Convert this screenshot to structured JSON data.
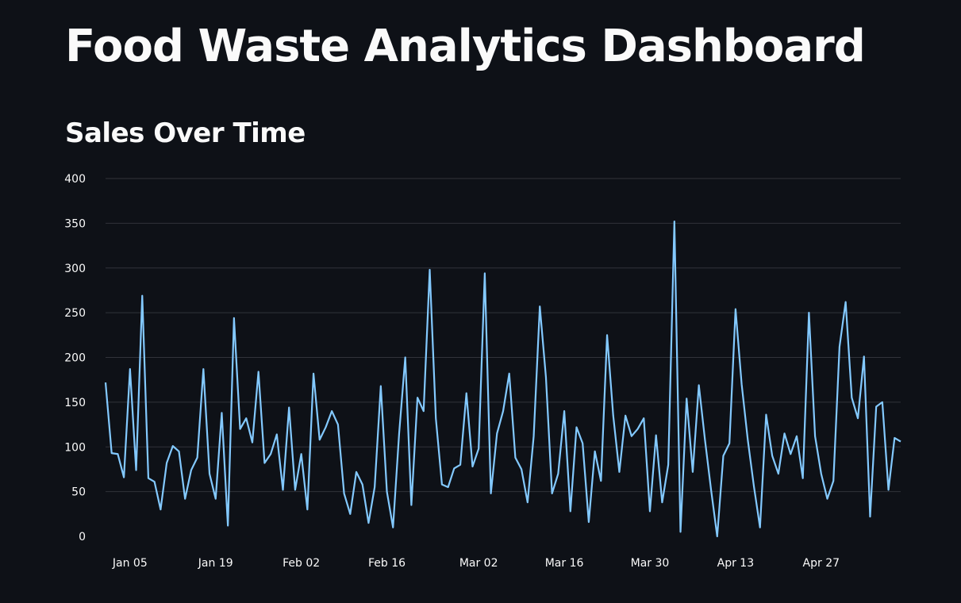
{
  "header": {
    "title": "Food Waste Analytics Dashboard"
  },
  "section": {
    "title": "Sales Over Time"
  },
  "colors": {
    "background": "#0e1117",
    "line": "#83c9ff",
    "grid": "#31333a",
    "text": "#fafafa"
  },
  "chart_data": {
    "type": "line",
    "title": "Sales Over Time",
    "xlabel": "",
    "ylabel": "",
    "ylim": [
      0,
      400
    ],
    "yticks": [
      0,
      50,
      100,
      150,
      200,
      250,
      300,
      350,
      400
    ],
    "xlim": [
      "2024-01-01",
      "2024-05-10"
    ],
    "xticks": [
      {
        "date": "2024-01-05",
        "label": "Jan 05"
      },
      {
        "date": "2024-01-19",
        "label": "Jan 19"
      },
      {
        "date": "2024-02-02",
        "label": "Feb 02"
      },
      {
        "date": "2024-02-16",
        "label": "Feb 16"
      },
      {
        "date": "2024-03-02",
        "label": "Mar 02"
      },
      {
        "date": "2024-03-16",
        "label": "Mar 16"
      },
      {
        "date": "2024-03-30",
        "label": "Mar 30"
      },
      {
        "date": "2024-04-13",
        "label": "Apr 13"
      },
      {
        "date": "2024-04-27",
        "label": "Apr 27"
      }
    ],
    "grid": true,
    "legend": "none",
    "series": [
      {
        "x": [
          "2024-01-01",
          "2024-01-02",
          "2024-01-03",
          "2024-01-04",
          "2024-01-05",
          "2024-01-06",
          "2024-01-07",
          "2024-01-08",
          "2024-01-09",
          "2024-01-10",
          "2024-01-11",
          "2024-01-12",
          "2024-01-13",
          "2024-01-14",
          "2024-01-15",
          "2024-01-16",
          "2024-01-17",
          "2024-01-18",
          "2024-01-19",
          "2024-01-20",
          "2024-01-21",
          "2024-01-22",
          "2024-01-23",
          "2024-01-24",
          "2024-01-25",
          "2024-01-26",
          "2024-01-27",
          "2024-01-28",
          "2024-01-29",
          "2024-01-30",
          "2024-01-31",
          "2024-02-01",
          "2024-02-02",
          "2024-02-03",
          "2024-02-04",
          "2024-02-05",
          "2024-02-06",
          "2024-02-07",
          "2024-02-08",
          "2024-02-09",
          "2024-02-10",
          "2024-02-11",
          "2024-02-12",
          "2024-02-13",
          "2024-02-14",
          "2024-02-15",
          "2024-02-16",
          "2024-02-17",
          "2024-02-18",
          "2024-02-19",
          "2024-02-20",
          "2024-02-21",
          "2024-02-22",
          "2024-02-23",
          "2024-02-24",
          "2024-02-25",
          "2024-02-26",
          "2024-02-27",
          "2024-02-28",
          "2024-02-29",
          "2024-03-01",
          "2024-03-02",
          "2024-03-03",
          "2024-03-04",
          "2024-03-05",
          "2024-03-06",
          "2024-03-07",
          "2024-03-08",
          "2024-03-09",
          "2024-03-10",
          "2024-03-11",
          "2024-03-12",
          "2024-03-13",
          "2024-03-14",
          "2024-03-15",
          "2024-03-16",
          "2024-03-17",
          "2024-03-18",
          "2024-03-19",
          "2024-03-20",
          "2024-03-21",
          "2024-03-22",
          "2024-03-23",
          "2024-03-24",
          "2024-03-25",
          "2024-03-26",
          "2024-03-27",
          "2024-03-28",
          "2024-03-29",
          "2024-03-30",
          "2024-03-31",
          "2024-04-01",
          "2024-04-02",
          "2024-04-03",
          "2024-04-04",
          "2024-04-05",
          "2024-04-06",
          "2024-04-07",
          "2024-04-08",
          "2024-04-09",
          "2024-04-10",
          "2024-04-11",
          "2024-04-12",
          "2024-04-13",
          "2024-04-14",
          "2024-04-15",
          "2024-04-16",
          "2024-04-17",
          "2024-04-18",
          "2024-04-19",
          "2024-04-20",
          "2024-04-21",
          "2024-04-22",
          "2024-04-23",
          "2024-04-24",
          "2024-04-25",
          "2024-04-26",
          "2024-04-27",
          "2024-04-28",
          "2024-04-29",
          "2024-04-30",
          "2024-05-01",
          "2024-05-02",
          "2024-05-03",
          "2024-05-04",
          "2024-05-05",
          "2024-05-06",
          "2024-05-07",
          "2024-05-08",
          "2024-05-09",
          "2024-05-10"
        ],
        "values": [
          172,
          93,
          92,
          66,
          187,
          74,
          269,
          65,
          61,
          30,
          82,
          101,
          95,
          42,
          74,
          88,
          187,
          70,
          42,
          138,
          12,
          244,
          120,
          132,
          105,
          184,
          82,
          92,
          114,
          52,
          144,
          52,
          92,
          30,
          182,
          108,
          122,
          140,
          125,
          48,
          25,
          72,
          58,
          15,
          55,
          168,
          50,
          10,
          115,
          200,
          35,
          155,
          140,
          298,
          132,
          58,
          55,
          76,
          80,
          160,
          78,
          98,
          294,
          48,
          115,
          140,
          182,
          88,
          75,
          38,
          112,
          257,
          178,
          48,
          70,
          140,
          28,
          122,
          104,
          16,
          95,
          62,
          225,
          135,
          72,
          135,
          112,
          120,
          132,
          28,
          113,
          38,
          80,
          352,
          5,
          154,
          72,
          169,
          108,
          52,
          0,
          90,
          104,
          254,
          170,
          108,
          56,
          10,
          136,
          90,
          70,
          115,
          92,
          112,
          65,
          250,
          112,
          70,
          42,
          62,
          212,
          262,
          155,
          132,
          201,
          22,
          145,
          150,
          52,
          110,
          106
        ]
      }
    ]
  }
}
